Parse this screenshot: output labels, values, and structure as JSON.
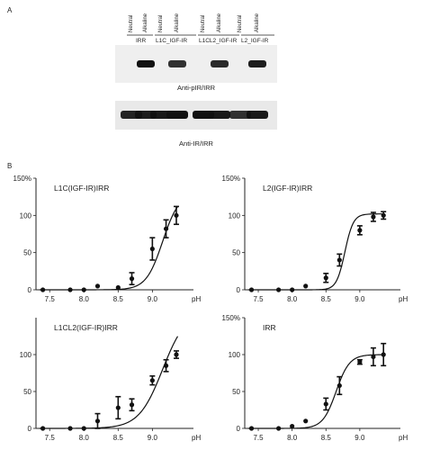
{
  "panel_a": {
    "letter": "A",
    "lane_labels": [
      "Neutral",
      "Alkaline",
      "Neutral",
      "Alkaline",
      "Neutral",
      "Alkaline",
      "Neutral",
      "Alkaline"
    ],
    "groups": [
      "IRR",
      "L1C_IGF-IR",
      "L1CL2_IGF-IR",
      "L2_IGF-IR"
    ],
    "top_blot_caption": "Anti-pIR/IRR",
    "bottom_blot_caption": "Anti-IR/IRR",
    "top_band_intensity": [
      0,
      1.0,
      0,
      0.75,
      0,
      0.8,
      0,
      0.9
    ],
    "bottom_band_intensity": [
      0.85,
      0.9,
      0.95,
      1.0,
      1.0,
      0.95,
      0.75,
      0.95
    ]
  },
  "panel_b": {
    "letter": "B"
  },
  "chart_data": [
    {
      "type": "line",
      "title": "L1C(IGF-IR)IRR",
      "xlabel": "pH",
      "x_ticks": [
        "7.5",
        "8.0",
        "8.5",
        "9.0"
      ],
      "y_ticks": [
        "0",
        "50",
        "100",
        "150%"
      ],
      "xlim": [
        7.3,
        9.6
      ],
      "ylim": [
        0,
        150
      ],
      "x": [
        7.4,
        7.8,
        8.0,
        8.2,
        8.5,
        8.7,
        9.0,
        9.2,
        9.35
      ],
      "y": [
        0,
        0,
        0,
        5,
        3,
        15,
        55,
        82,
        100
      ],
      "err": [
        0,
        0,
        0,
        0,
        0,
        8,
        15,
        12,
        12
      ],
      "fit": {
        "bottom": 0,
        "top": 130,
        "ec50": 9.15,
        "hill": 3.6
      }
    },
    {
      "type": "line",
      "title": "L2(IGF-IR)IRR",
      "xlabel": "pH",
      "x_ticks": [
        "7.5",
        "8.0",
        "8.5",
        "9.0"
      ],
      "y_ticks": [
        "0",
        "50",
        "100",
        "150%"
      ],
      "xlim": [
        7.3,
        9.6
      ],
      "ylim": [
        0,
        150
      ],
      "x": [
        7.4,
        7.8,
        8.0,
        8.2,
        8.5,
        8.7,
        9.0,
        9.2,
        9.35
      ],
      "y": [
        0,
        0,
        0,
        5,
        16,
        40,
        80,
        98,
        100
      ],
      "err": [
        0,
        0,
        0,
        0,
        6,
        8,
        6,
        6,
        5
      ],
      "fit": {
        "bottom": 0,
        "top": 102,
        "ec50": 8.78,
        "hill": 7.0
      }
    },
    {
      "type": "line",
      "title": "L1CL2(IGF-IR)IRR",
      "xlabel": "pH",
      "x_ticks": [
        "7.5",
        "8.0",
        "8.5",
        "9.0"
      ],
      "y_ticks": [
        "0",
        "50",
        "100"
      ],
      "xlim": [
        7.3,
        9.6
      ],
      "ylim": [
        0,
        150
      ],
      "x": [
        7.4,
        7.8,
        8.0,
        8.2,
        8.5,
        8.7,
        9.0,
        9.2,
        9.35
      ],
      "y": [
        0,
        0,
        0,
        10,
        28,
        32,
        65,
        85,
        100
      ],
      "err": [
        0,
        0,
        0,
        10,
        15,
        8,
        6,
        8,
        5
      ],
      "fit": {
        "bottom": 0,
        "top": 160,
        "ec50": 9.15,
        "hill": 2.5
      }
    },
    {
      "type": "line",
      "title": "IRR",
      "xlabel": "pH",
      "x_ticks": [
        "7.5",
        "8.0",
        "8.5",
        "9.0"
      ],
      "y_ticks": [
        "0",
        "50",
        "100",
        "150%"
      ],
      "xlim": [
        7.3,
        9.6
      ],
      "ylim": [
        0,
        150
      ],
      "x": [
        7.4,
        7.8,
        8.0,
        8.2,
        8.5,
        8.7,
        9.0,
        9.2,
        9.35
      ],
      "y": [
        0,
        0,
        3,
        10,
        33,
        58,
        90,
        97,
        100
      ],
      "err": [
        0,
        0,
        0,
        0,
        8,
        12,
        3,
        12,
        15
      ],
      "fit": {
        "bottom": 0,
        "top": 100,
        "ec50": 8.65,
        "hill": 4.4
      }
    }
  ]
}
